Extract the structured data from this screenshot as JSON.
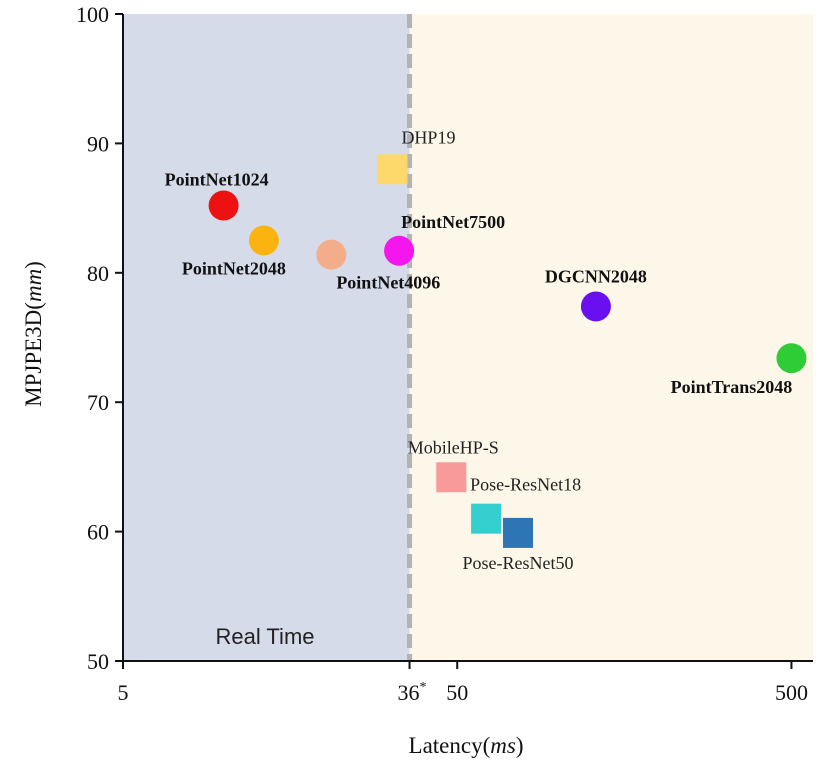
{
  "chart_data": {
    "type": "scatter",
    "xlabel_main": "Latency(",
    "xlabel_unit": "ms",
    "xlabel_close": ")",
    "ylabel_main": "MPJPE3D(",
    "ylabel_unit": "mm",
    "ylabel_close": ")",
    "x_scale": "log",
    "xlim": [
      5,
      580
    ],
    "ylim": [
      50,
      100
    ],
    "x_ticks": [
      {
        "value": 5,
        "label": "5"
      },
      {
        "value": 50,
        "label": "50"
      },
      {
        "value": 500,
        "label": "500"
      }
    ],
    "y_ticks": [
      {
        "value": 50,
        "label": "50"
      },
      {
        "value": 60,
        "label": "60"
      },
      {
        "value": 70,
        "label": "70"
      },
      {
        "value": 80,
        "label": "80"
      },
      {
        "value": 90,
        "label": "90"
      },
      {
        "value": 100,
        "label": "100"
      }
    ],
    "threshold": {
      "x": 36,
      "label": "36",
      "superscript": "*"
    },
    "region_label": "Real Time",
    "region_colors": {
      "realtime": "#d5dbe8",
      "nonrealtime": "#fdf7ea",
      "divider": "#b3b3b3"
    },
    "points": [
      {
        "name": "PointNet1024",
        "x": 10,
        "y": 85.2,
        "marker": "circle",
        "color": "#ee1111",
        "bold": true,
        "label_pos": "above-left"
      },
      {
        "name": "PointNet2048",
        "x": 13.2,
        "y": 82.5,
        "marker": "circle",
        "color": "#fbb40f",
        "bold": true,
        "label_pos": "below-left"
      },
      {
        "name": "PointNet4096",
        "x": 21,
        "y": 81.4,
        "marker": "circle",
        "color": "#f4ad8a",
        "bold": true,
        "label_pos": "below-right"
      },
      {
        "name": "PointNet7500",
        "x": 33.5,
        "y": 81.7,
        "marker": "circle",
        "color": "#f516ee",
        "bold": true,
        "label_pos": "above-right"
      },
      {
        "name": "DHP19",
        "x": 32,
        "y": 88,
        "marker": "square",
        "color": "#fdd86a",
        "bold": false,
        "label_pos": "above-right"
      },
      {
        "name": "DGCNN2048",
        "x": 130,
        "y": 77.4,
        "marker": "circle",
        "color": "#6a0ff0",
        "bold": true,
        "label_pos": "above"
      },
      {
        "name": "PointTrans2048",
        "x": 500,
        "y": 73.4,
        "marker": "circle",
        "color": "#2ecc35",
        "bold": true,
        "label_pos": "below-left"
      },
      {
        "name": "MobileHP-S",
        "x": 48,
        "y": 64.2,
        "marker": "square",
        "color": "#f89a9a",
        "bold": false,
        "label_pos": "above"
      },
      {
        "name": "Pose-ResNet18",
        "x": 61,
        "y": 61,
        "marker": "square",
        "color": "#35cfcf",
        "bold": false,
        "label_pos": "above-right"
      },
      {
        "name": "Pose-ResNet50",
        "x": 76,
        "y": 59.9,
        "marker": "square",
        "color": "#2e75b6",
        "bold": false,
        "label_pos": "below"
      }
    ]
  }
}
